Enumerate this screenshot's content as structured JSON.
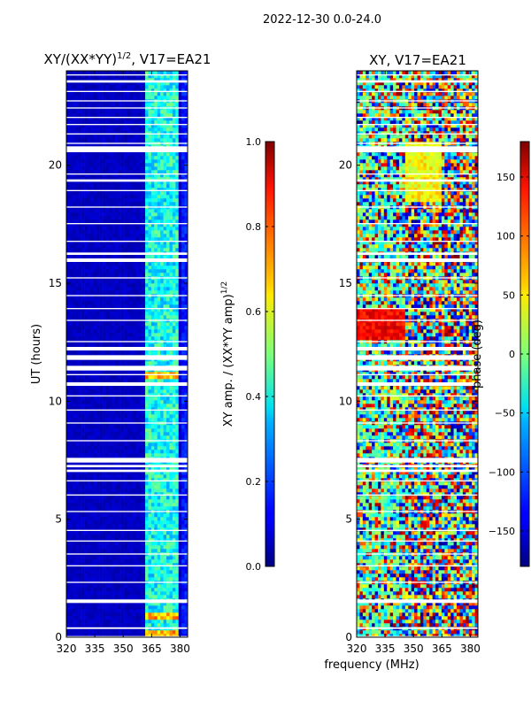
{
  "figure": {
    "suptitle": "2022-12-30 0.0-24.0",
    "xlabel": "frequency (MHz)"
  },
  "colors": {
    "background": "#ffffff",
    "masked": "#ffffff",
    "frame": "#000000"
  },
  "chart_data": [
    {
      "id": "amp",
      "type": "heatmap",
      "title": "XY/(XX*YY)",
      "title_exp": "1/2",
      "title_rest": ", V17=EA21",
      "ylabel": "UT (hours)",
      "xlim": [
        320,
        384
      ],
      "ylim": [
        0,
        24
      ],
      "xticks": [
        320,
        335,
        350,
        365,
        380
      ],
      "yticks": [
        0,
        5,
        10,
        15,
        20
      ],
      "colormap": "jet",
      "data_description": "normalized XY amplitude; mostly ~0.05 (dark blue) below 362 MHz, ~0.3-0.5 in 362-380 MHz, bursts near 0.7 at ~0.8 h and ~11 h",
      "masked_rows_hours": [
        [
          0.0,
          0.05
        ],
        [
          0.35,
          0.42
        ],
        [
          1.45,
          1.6
        ],
        [
          2.3,
          2.35
        ],
        [
          3.0,
          3.05
        ],
        [
          3.5,
          3.55
        ],
        [
          4.05,
          4.1
        ],
        [
          4.5,
          4.55
        ],
        [
          5.3,
          5.35
        ],
        [
          6.0,
          6.05
        ],
        [
          6.6,
          6.65
        ],
        [
          7.0,
          7.1
        ],
        [
          7.2,
          7.3
        ],
        [
          7.4,
          7.6
        ],
        [
          8.3,
          8.35
        ],
        [
          9.05,
          9.1
        ],
        [
          9.6,
          9.65
        ],
        [
          10.2,
          10.25
        ],
        [
          10.65,
          10.8
        ],
        [
          11.1,
          11.15
        ],
        [
          11.3,
          11.5
        ],
        [
          11.75,
          11.95
        ],
        [
          12.15,
          12.3
        ],
        [
          12.5,
          12.55
        ],
        [
          13.4,
          13.45
        ],
        [
          13.9,
          13.95
        ],
        [
          14.45,
          14.5
        ],
        [
          15.2,
          15.25
        ],
        [
          15.9,
          16.05
        ],
        [
          16.2,
          16.3
        ],
        [
          16.75,
          16.8
        ],
        [
          17.5,
          17.55
        ],
        [
          18.2,
          18.25
        ],
        [
          18.9,
          18.95
        ],
        [
          19.3,
          19.4
        ],
        [
          19.6,
          19.65
        ],
        [
          20.55,
          20.8
        ],
        [
          20.9,
          20.95
        ],
        [
          21.3,
          21.35
        ],
        [
          21.7,
          21.75
        ],
        [
          22.0,
          22.05
        ],
        [
          22.4,
          22.45
        ],
        [
          22.7,
          22.75
        ],
        [
          23.1,
          23.15
        ],
        [
          23.5,
          23.6
        ],
        [
          23.8,
          23.85
        ]
      ]
    },
    {
      "id": "amp-colorbar",
      "type": "colorbar",
      "label": "XY amp. / (XX*YY amp)",
      "label_exp": "1/2",
      "range": [
        0.0,
        1.0
      ],
      "ticks": [
        "0.0",
        "0.2",
        "0.4",
        "0.6",
        "0.8",
        "1.0"
      ],
      "tick_values": [
        0.0,
        0.2,
        0.4,
        0.6,
        0.8,
        1.0
      ]
    },
    {
      "id": "phase",
      "type": "heatmap",
      "title": "XY, V17=EA21",
      "xlim": [
        320,
        384
      ],
      "ylim": [
        0,
        24
      ],
      "xticks": [
        320,
        335,
        350,
        365,
        380
      ],
      "yticks": [
        0,
        5,
        10,
        15,
        20
      ],
      "colormap": "jet",
      "data_description": "XY phase in degrees; mottled noise -180..180, with large red (~150 deg) patch 12.6-13.8 h at 320-345 MHz and yellow/green bands 18-21 h",
      "masked_rows_hours": [
        [
          0.0,
          0.05
        ],
        [
          0.35,
          0.42
        ],
        [
          1.45,
          1.6
        ],
        [
          2.3,
          2.35
        ],
        [
          3.0,
          3.05
        ],
        [
          3.5,
          3.55
        ],
        [
          4.05,
          4.1
        ],
        [
          4.5,
          4.55
        ],
        [
          5.3,
          5.35
        ],
        [
          6.0,
          6.05
        ],
        [
          6.6,
          6.65
        ],
        [
          7.0,
          7.1
        ],
        [
          7.2,
          7.3
        ],
        [
          7.4,
          7.6
        ],
        [
          8.3,
          8.35
        ],
        [
          9.05,
          9.1
        ],
        [
          9.6,
          9.65
        ],
        [
          10.2,
          10.25
        ],
        [
          10.65,
          10.8
        ],
        [
          11.1,
          11.15
        ],
        [
          11.3,
          11.5
        ],
        [
          11.75,
          11.95
        ],
        [
          12.15,
          12.3
        ],
        [
          12.5,
          12.55
        ],
        [
          13.4,
          13.45
        ],
        [
          13.9,
          13.95
        ],
        [
          14.45,
          14.5
        ],
        [
          15.2,
          15.25
        ],
        [
          15.9,
          16.05
        ],
        [
          16.2,
          16.3
        ],
        [
          16.75,
          16.8
        ],
        [
          17.5,
          17.55
        ],
        [
          18.2,
          18.25
        ],
        [
          18.9,
          18.95
        ],
        [
          19.3,
          19.4
        ],
        [
          19.6,
          19.65
        ],
        [
          20.55,
          20.8
        ],
        [
          20.9,
          20.95
        ],
        [
          21.3,
          21.35
        ],
        [
          21.7,
          21.75
        ],
        [
          22.0,
          22.05
        ],
        [
          22.4,
          22.45
        ],
        [
          22.7,
          22.75
        ],
        [
          23.1,
          23.15
        ],
        [
          23.5,
          23.6
        ],
        [
          23.8,
          23.85
        ]
      ]
    },
    {
      "id": "phase-colorbar",
      "type": "colorbar",
      "label": "phase (deg)",
      "range": [
        -180,
        180
      ],
      "ticks": [
        "−150",
        "−100",
        "−50",
        "0",
        "50",
        "100",
        "150"
      ],
      "tick_values": [
        -150,
        -100,
        -50,
        0,
        50,
        100,
        150
      ]
    }
  ]
}
